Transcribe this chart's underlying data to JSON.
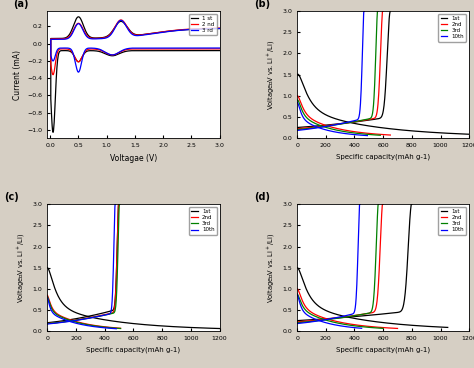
{
  "panel_a": {
    "label": "(a)",
    "xlabel": "Voltagae (V)",
    "ylabel": "Current (mA)",
    "xlim": [
      -0.1,
      3.0
    ],
    "xticks": [
      0.0,
      0.5,
      1.0,
      1.5,
      2.0,
      2.5,
      3.0
    ],
    "legend": [
      "1 st",
      "2 nd",
      "3 rd"
    ],
    "colors": [
      "black",
      "red",
      "blue"
    ]
  },
  "panel_b": {
    "label": "(b)",
    "xlabel": "Specific capacity(mAh g-1)",
    "ylabel": "Voltage (V vs. Li+/Li)",
    "xlim": [
      0,
      1200
    ],
    "ylim": [
      0,
      3.0
    ],
    "xticks": [
      0,
      200,
      400,
      600,
      800,
      1000,
      1200
    ],
    "yticks": [
      0.0,
      0.5,
      1.0,
      1.5,
      2.0,
      2.5,
      3.0
    ],
    "legend": [
      "1st",
      "2nd",
      "3rd",
      "10th"
    ],
    "colors": [
      "black",
      "red",
      "green",
      "blue"
    ]
  },
  "panel_c": {
    "label": "(c)",
    "xlabel": "Specific capacity(mAh g-1)",
    "ylabel": "Voltage (V vs. Li+/Li)",
    "xlim": [
      0,
      1200
    ],
    "ylim": [
      0,
      3.0
    ],
    "xticks": [
      0,
      200,
      400,
      600,
      800,
      1000,
      1200
    ],
    "yticks": [
      0.0,
      0.5,
      1.0,
      1.5,
      2.0,
      2.5,
      3.0
    ],
    "legend": [
      "1st",
      "2nd",
      "3rd",
      "10th"
    ],
    "colors": [
      "black",
      "red",
      "green",
      "blue"
    ]
  },
  "panel_d": {
    "label": "(d)",
    "xlabel": "Specific capacity(mAh g-1)",
    "ylabel": "Voltage (V vs. Li+/Li)",
    "xlim": [
      0,
      1200
    ],
    "ylim": [
      0,
      3.0
    ],
    "xticks": [
      0,
      200,
      400,
      600,
      800,
      1000,
      1200
    ],
    "yticks": [
      0.0,
      0.5,
      1.0,
      1.5,
      2.0,
      2.5,
      3.0
    ],
    "legend": [
      "1st",
      "2nd",
      "3rd",
      "10th"
    ],
    "colors": [
      "black",
      "red",
      "green",
      "blue"
    ]
  },
  "outer_bg": "#d6cfc4",
  "plot_bg": "#ffffff",
  "lw": 0.9
}
